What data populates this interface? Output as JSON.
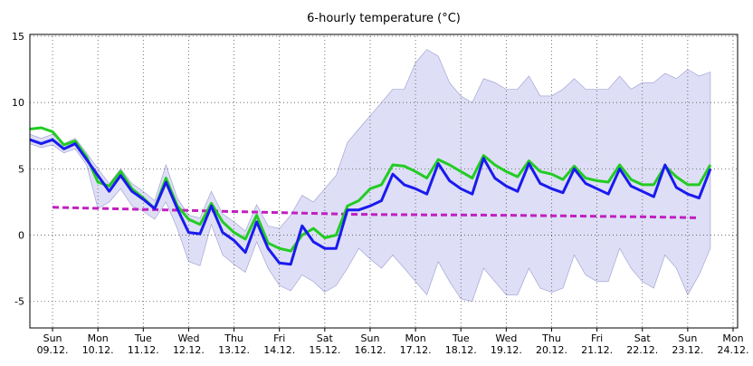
{
  "chart_data": {
    "type": "line",
    "title": "6-hourly temperature (°C)",
    "x": [
      -0.5,
      -0.25,
      0,
      0.25,
      0.5,
      0.75,
      1,
      1.25,
      1.5,
      1.75,
      2,
      2.25,
      2.5,
      2.75,
      3,
      3.25,
      3.5,
      3.75,
      4,
      4.25,
      4.5,
      4.75,
      5,
      5.25,
      5.5,
      5.75,
      6,
      6.25,
      6.5,
      6.75,
      7,
      7.25,
      7.5,
      7.75,
      8,
      8.25,
      8.5,
      8.75,
      9,
      9.25,
      9.5,
      9.75,
      10,
      10.25,
      10.5,
      10.75,
      11,
      11.25,
      11.5,
      11.75,
      12,
      12.25,
      12.5,
      12.75,
      13,
      13.25,
      13.5,
      13.75,
      14,
      14.25,
      14.5
    ],
    "band": {
      "color": "#c8c8f0",
      "max": [
        7.6,
        7.3,
        7.6,
        6.9,
        7.3,
        6.2,
        5.0,
        3.9,
        5.0,
        3.9,
        3.3,
        2.6,
        5.3,
        2.8,
        1.5,
        1.3,
        3.3,
        1.6,
        1.0,
        0.3,
        2.3,
        0.7,
        0.5,
        1.5,
        3.0,
        2.5,
        3.5,
        4.5,
        7.0,
        8.0,
        9.0,
        10.0,
        11.0,
        11.0,
        13.0,
        14.0,
        13.5,
        11.5,
        10.5,
        10.0,
        11.8,
        11.5,
        11.0,
        11.0,
        12.0,
        10.5,
        10.5,
        11.0,
        11.8,
        11.0,
        11.0,
        11.0,
        12.0,
        11.0,
        11.5,
        11.5,
        12.2,
        11.8,
        12.5,
        12.0,
        12.3
      ],
      "min": [
        6.9,
        6.6,
        6.8,
        6.2,
        6.5,
        5.3,
        2.0,
        2.5,
        3.5,
        2.2,
        1.8,
        1.2,
        2.5,
        0.5,
        -2.0,
        -2.3,
        0.8,
        -1.5,
        -2.2,
        -2.8,
        -0.5,
        -2.5,
        -3.8,
        -4.2,
        -3.0,
        -3.5,
        -4.3,
        -3.8,
        -2.5,
        -1.0,
        -1.8,
        -2.5,
        -1.5,
        -2.5,
        -3.5,
        -4.5,
        -2.0,
        -3.5,
        -4.8,
        -5.0,
        -2.5,
        -3.5,
        -4.5,
        -4.5,
        -2.5,
        -4.0,
        -4.3,
        -4.0,
        -1.5,
        -3.0,
        -3.5,
        -3.5,
        -1.0,
        -2.5,
        -3.5,
        -4.0,
        -1.5,
        -2.5,
        -4.5,
        -3.0,
        -1.0
      ]
    },
    "series": [
      {
        "color": "#c020c0",
        "dashed": true,
        "values": [
          null,
          null,
          2.1,
          2.08,
          2.06,
          2.04,
          2.02,
          2.0,
          1.98,
          1.96,
          1.94,
          1.92,
          1.9,
          1.88,
          1.86,
          1.84,
          1.82,
          1.8,
          1.78,
          1.76,
          1.74,
          1.72,
          1.7,
          1.68,
          1.66,
          1.64,
          1.62,
          1.6,
          1.58,
          1.57,
          1.56,
          1.55,
          1.55,
          1.54,
          1.54,
          1.53,
          1.53,
          1.52,
          1.52,
          1.51,
          1.51,
          1.5,
          1.5,
          1.49,
          1.48,
          1.47,
          1.46,
          1.45,
          1.44,
          1.43,
          1.42,
          1.41,
          1.4,
          1.39,
          1.38,
          1.37,
          1.35,
          1.34,
          1.32,
          1.3,
          null
        ]
      },
      {
        "color": "#22cc22",
        "values": [
          8.0,
          8.1,
          7.8,
          6.8,
          7.1,
          5.9,
          4.0,
          3.7,
          4.8,
          3.5,
          2.8,
          2.0,
          4.3,
          2.2,
          1.2,
          0.8,
          2.4,
          1.0,
          0.2,
          -0.3,
          1.5,
          -0.6,
          -1.0,
          -1.2,
          0.0,
          0.5,
          -0.2,
          0.0,
          2.2,
          2.6,
          3.5,
          3.8,
          5.3,
          5.2,
          4.8,
          4.3,
          5.7,
          5.3,
          4.8,
          4.3,
          6.0,
          5.3,
          4.8,
          4.4,
          5.6,
          4.8,
          4.6,
          4.2,
          5.2,
          4.3,
          4.1,
          4.0,
          5.3,
          4.2,
          3.8,
          3.8,
          5.2,
          4.4,
          3.8,
          3.8,
          5.3
        ]
      },
      {
        "color": "#1a1aee",
        "values": [
          7.2,
          6.9,
          7.2,
          6.5,
          6.9,
          5.7,
          4.5,
          3.3,
          4.5,
          3.3,
          2.7,
          2.0,
          4.0,
          2.0,
          0.2,
          0.1,
          2.2,
          0.2,
          -0.4,
          -1.3,
          1.0,
          -1.0,
          -2.1,
          -2.2,
          0.7,
          -0.5,
          -1.0,
          -1.0,
          1.9,
          1.9,
          2.2,
          2.6,
          4.6,
          3.8,
          3.5,
          3.1,
          5.4,
          4.1,
          3.5,
          3.1,
          5.8,
          4.3,
          3.7,
          3.3,
          5.4,
          3.9,
          3.5,
          3.2,
          5.0,
          3.9,
          3.5,
          3.1,
          5.0,
          3.7,
          3.3,
          2.9,
          5.3,
          3.6,
          3.1,
          2.8,
          5.0
        ]
      }
    ],
    "xlim": [
      -0.5,
      15.1
    ],
    "xticks": [
      {
        "value": 0,
        "label": "Sun",
        "date": "09.12."
      },
      {
        "value": 1,
        "label": "Mon",
        "date": "10.12."
      },
      {
        "value": 2,
        "label": "Tue",
        "date": "11.12."
      },
      {
        "value": 3,
        "label": "Wed",
        "date": "12.12."
      },
      {
        "value": 4,
        "label": "Thu",
        "date": "13.12."
      },
      {
        "value": 5,
        "label": "Fri",
        "date": "14.12."
      },
      {
        "value": 6,
        "label": "Sat",
        "date": "15.12."
      },
      {
        "value": 7,
        "label": "Sun",
        "date": "16.12."
      },
      {
        "value": 8,
        "label": "Mon",
        "date": "17.12."
      },
      {
        "value": 9,
        "label": "Tue",
        "date": "18.12."
      },
      {
        "value": 10,
        "label": "Wed",
        "date": "19.12."
      },
      {
        "value": 11,
        "label": "Thu",
        "date": "20.12."
      },
      {
        "value": 12,
        "label": "Fri",
        "date": "21.12."
      },
      {
        "value": 13,
        "label": "Sat",
        "date": "22.12."
      },
      {
        "value": 14,
        "label": "Sun",
        "date": "23.12."
      },
      {
        "value": 15,
        "label": "Mon",
        "date": "24.12."
      }
    ],
    "ylim": [
      -7,
      15
    ],
    "yticks": [
      -5,
      0,
      5,
      10,
      15
    ],
    "grid": true
  }
}
